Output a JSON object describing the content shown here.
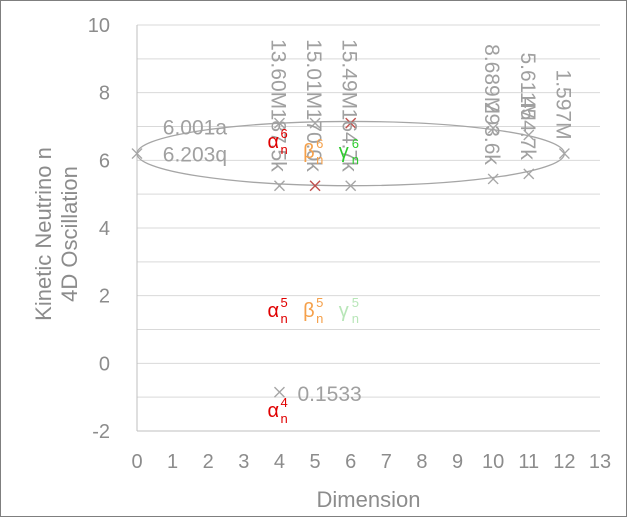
{
  "chart_data": {
    "type": "scatter",
    "xlabel": "Dimension",
    "ylabel_lines": [
      "Kinetic Neutrino n",
      "4D Oscillation"
    ],
    "xlim": [
      0,
      13
    ],
    "ylim": [
      -2,
      10
    ],
    "x_ticks": [
      "0",
      "1",
      "2",
      "3",
      "4",
      "5",
      "6",
      "7",
      "8",
      "9",
      "10",
      "11",
      "12",
      "13"
    ],
    "y_ticks": [
      "-2",
      "0",
      "2",
      "4",
      "6",
      "8",
      "10"
    ],
    "grid": "horizontal",
    "colors": {
      "gray": "#a6a6a6",
      "alpha": "#e00000",
      "beta": "#f5a04a",
      "gamma": "#2ecc2e",
      "gamma_faded": "#b8e6b8",
      "dark_red": "#c0504d",
      "ellipse": "#a6a6a6"
    },
    "points": [
      {
        "x": 0,
        "y": 6.2,
        "color": "gray"
      },
      {
        "x": 4,
        "y": 7.1,
        "color": "gray",
        "label": "13.60M"
      },
      {
        "x": 5,
        "y": 7.1,
        "color": "gray",
        "label": "15.01M"
      },
      {
        "x": 6,
        "y": 7.1,
        "color": "dark_red",
        "label": "15.49M"
      },
      {
        "x": 4,
        "y": 5.25,
        "color": "gray",
        "label": "187.5k"
      },
      {
        "x": 5,
        "y": 5.25,
        "color": "dark_red",
        "label": "170.0k"
      },
      {
        "x": 6,
        "y": 5.25,
        "color": "gray",
        "label": "164.7k"
      },
      {
        "x": 10,
        "y": 6.95,
        "color": "gray",
        "label": "8.689M"
      },
      {
        "x": 11,
        "y": 6.75,
        "color": "gray",
        "label": "5.611M"
      },
      {
        "x": 12,
        "y": 6.2,
        "color": "gray",
        "label": "1.597M"
      },
      {
        "x": 10,
        "y": 5.45,
        "color": "gray",
        "label": "293.6k"
      },
      {
        "x": 11,
        "y": 5.6,
        "color": "gray",
        "label": "454.7k"
      },
      {
        "x": 4,
        "y": -0.85,
        "color": "gray",
        "label": "0.1533"
      }
    ],
    "annotations": [
      {
        "text": "6.001a",
        "x": 0.5,
        "y": 7.0
      },
      {
        "text": "6.203q",
        "x": 0.5,
        "y": 6.2
      }
    ],
    "symbols": [
      {
        "base": "α",
        "sup": "6",
        "sub": "n",
        "x": 4,
        "y": 6.6,
        "color": "alpha"
      },
      {
        "base": "β",
        "sup": "6",
        "sub": "n",
        "x": 5,
        "y": 6.3,
        "color": "beta"
      },
      {
        "base": "γ",
        "sup": "6",
        "sub": "n",
        "x": 6,
        "y": 6.3,
        "color": "gamma"
      },
      {
        "base": "α",
        "sup": "5",
        "sub": "n",
        "x": 4,
        "y": 1.6,
        "color": "alpha"
      },
      {
        "base": "β",
        "sup": "5",
        "sub": "n",
        "x": 5,
        "y": 1.6,
        "color": "beta"
      },
      {
        "base": "γ",
        "sup": "5",
        "sub": "n",
        "x": 6,
        "y": 1.6,
        "color": "gamma_faded"
      },
      {
        "base": "α",
        "sup": "4",
        "sub": "n",
        "x": 4,
        "y": -1.35,
        "color": "alpha"
      }
    ],
    "ellipse": {
      "cx": 6,
      "cy": 6.2,
      "rx": 6,
      "ry": 0.95
    }
  }
}
